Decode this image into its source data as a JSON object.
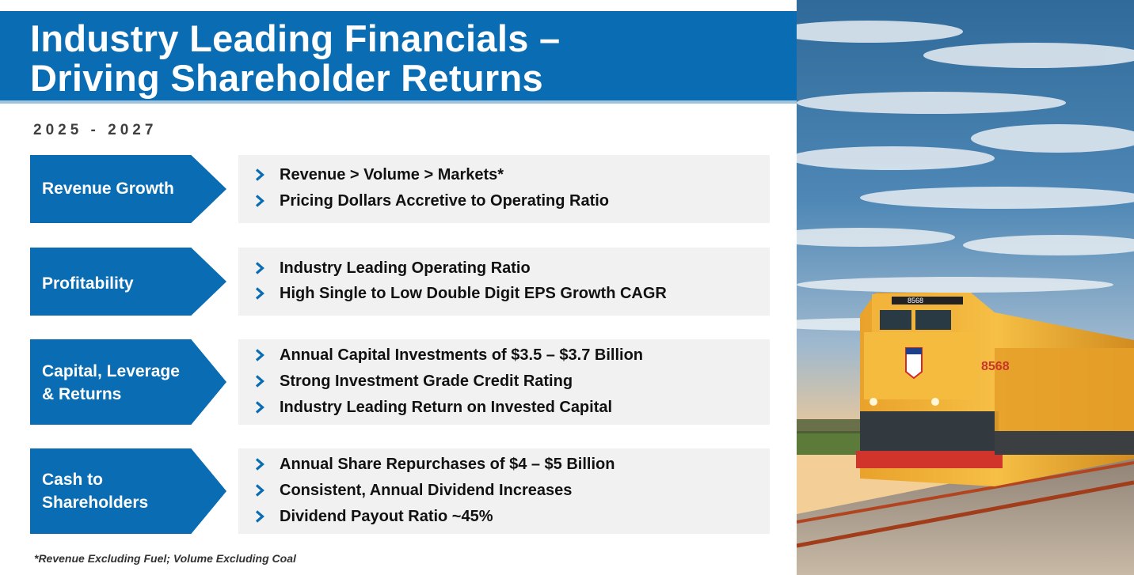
{
  "title": {
    "line1": "Industry Leading Financials –",
    "line2": "Driving Shareholder Returns"
  },
  "date_range": "2025 - 2027",
  "sections": [
    {
      "label_lines": [
        "Revenue Growth"
      ],
      "bullets": [
        "Revenue > Volume > Markets*",
        "Pricing Dollars Accretive to Operating Ratio"
      ]
    },
    {
      "label_lines": [
        "Profitability"
      ],
      "bullets": [
        "Industry Leading Operating Ratio",
        "High Single to Low Double Digit EPS Growth CAGR"
      ]
    },
    {
      "label_lines": [
        "Capital, Leverage",
        "& Returns"
      ],
      "bullets": [
        "Annual Capital Investments of $3.5 – $3.7 Billion",
        "Strong Investment Grade Credit Rating",
        "Industry Leading Return on Invested Capital"
      ]
    },
    {
      "label_lines": [
        "Cash to",
        "Shareholders"
      ],
      "bullets": [
        "Annual Share Repurchases of $4 – $5 Billion",
        "Consistent, Annual Dividend Increases",
        "Dividend Payout Ratio ~45%"
      ]
    }
  ],
  "footnote": "*Revenue Excluding Fuel; Volume Excluding Coal",
  "locomotive": {
    "number": "8568"
  },
  "colors": {
    "brand_blue": "#0a6db3",
    "panel_gray": "#f1f1f1",
    "locomotive_yellow": "#f2b43a"
  },
  "icons": {
    "bullet": "chevron-right-icon"
  }
}
